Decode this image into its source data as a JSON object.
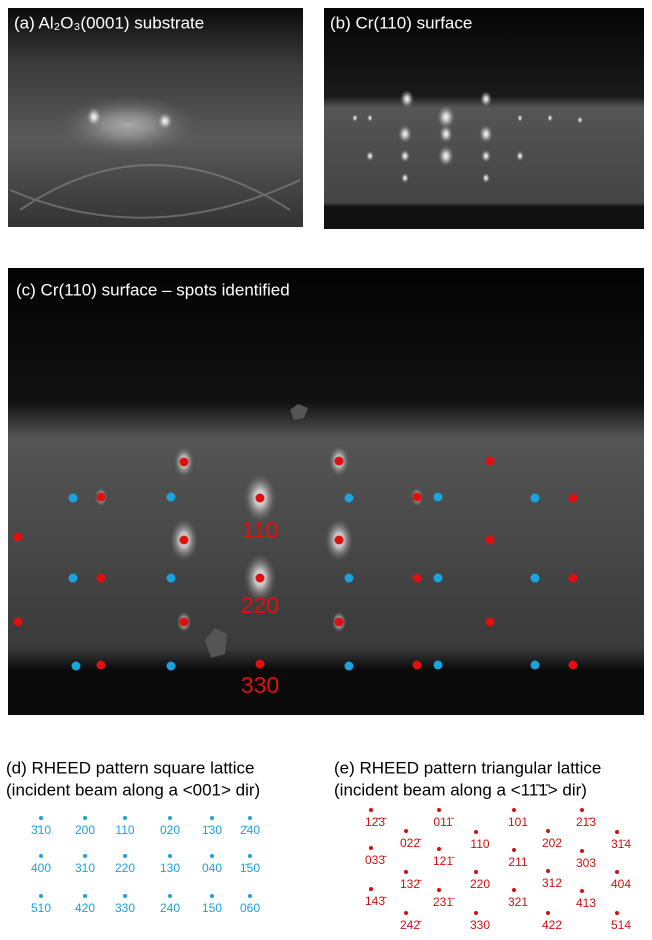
{
  "panels": {
    "a": "(a) Al₂O₃(0001) substrate",
    "b": "(b) Cr(110) surface",
    "c": "(c) Cr(110) surface – spots identified"
  },
  "spot_labels": [
    "110",
    "220",
    "330"
  ],
  "square_lattice": {
    "title": [
      "(d) RHEED pattern square lattice",
      "(incident beam along a <001> dir)"
    ],
    "labels": [
      [
        "3̄10",
        "200",
        "110",
        "020",
        "1̄30",
        "2̄40"
      ],
      [
        "400",
        "310",
        "220",
        "130",
        "040",
        "1̄50"
      ],
      [
        "510",
        "420",
        "330",
        "240",
        "150",
        "060"
      ]
    ]
  },
  "triangular_lattice": {
    "title": [
      "(e) RHEED pattern triangular lattice",
      "(incident beam along a <11̄1̄> dir)"
    ],
    "labels": [
      [
        "12̄3̄",
        "033̄",
        "143̄"
      ],
      [
        "022̄",
        "132̄",
        "242̄"
      ],
      [
        "011̄",
        "121̄",
        "231̄"
      ],
      [
        "110",
        "220",
        "330"
      ],
      [
        "101",
        "211",
        "321"
      ],
      [
        "202",
        "312",
        "422"
      ],
      [
        "21̄3",
        "303",
        "413"
      ],
      [
        "31̄4",
        "404",
        "514"
      ]
    ]
  }
}
